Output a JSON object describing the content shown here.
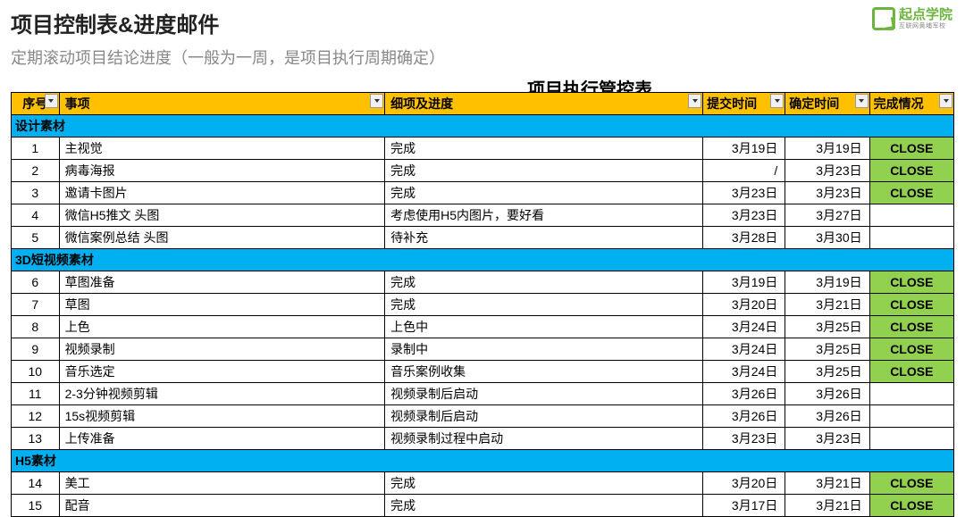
{
  "logo": {
    "main": "起点学院",
    "sub": "互联网黄埔军校"
  },
  "title": "项目控制表&进度邮件",
  "subtitle": "定期滚动项目结论进度（一般为一周，是项目执行周期确定）",
  "table_title": "项目执行管控表",
  "colors": {
    "header_bg": "#ffc000",
    "section_bg": "#00b0f0",
    "close_bg": "#92d050",
    "logo_green": "#6cb33f"
  },
  "columns": [
    "序号",
    "事项",
    "细项及进度",
    "提交时间",
    "确定时间",
    "完成情况"
  ],
  "sections": [
    {
      "label": "设计素材",
      "rows": [
        {
          "num": "1",
          "item": "主视觉",
          "detail": "完成",
          "submit": "3月19日",
          "confirm": "3月19日",
          "status": "CLOSE"
        },
        {
          "num": "2",
          "item": "病毒海报",
          "detail": "完成",
          "submit": "/",
          "confirm": "3月23日",
          "status": "CLOSE"
        },
        {
          "num": "3",
          "item": "邀请卡图片",
          "detail": "完成",
          "submit": "3月23日",
          "confirm": "3月23日",
          "status": "CLOSE"
        },
        {
          "num": "4",
          "item": "微信H5推文 头图",
          "detail": "考虑使用H5内图片，要好看",
          "submit": "3月23日",
          "confirm": "3月27日",
          "status": ""
        },
        {
          "num": "5",
          "item": "微信案例总结 头图",
          "detail": "待补充",
          "submit": "3月28日",
          "confirm": "3月30日",
          "status": ""
        }
      ]
    },
    {
      "label": "3D短视频素材",
      "rows": [
        {
          "num": "6",
          "item": "草图准备",
          "detail": "完成",
          "submit": "3月19日",
          "confirm": "3月19日",
          "status": "CLOSE"
        },
        {
          "num": "7",
          "item": "草图",
          "detail": "完成",
          "submit": "3月20日",
          "confirm": "3月21日",
          "status": "CLOSE"
        },
        {
          "num": "8",
          "item": "上色",
          "detail": "上色中",
          "submit": "3月24日",
          "confirm": "3月25日",
          "status": "CLOSE"
        },
        {
          "num": "9",
          "item": "视频录制",
          "detail": "录制中",
          "submit": "3月24日",
          "confirm": "3月25日",
          "status": "CLOSE"
        },
        {
          "num": "10",
          "item": "音乐选定",
          "detail": "音乐案例收集",
          "submit": "3月24日",
          "confirm": "3月25日",
          "status": "CLOSE"
        },
        {
          "num": "11",
          "item": "2-3分钟视频剪辑",
          "detail": "视频录制后启动",
          "submit": "3月26日",
          "confirm": "3月26日",
          "status": ""
        },
        {
          "num": "12",
          "item": "15s视频剪辑",
          "detail": "视频录制后启动",
          "submit": "3月26日",
          "confirm": "3月26日",
          "status": ""
        },
        {
          "num": "13",
          "item": "上传准备",
          "detail": "视频录制过程中启动",
          "submit": "3月23日",
          "confirm": "3月23日",
          "status": ""
        }
      ]
    },
    {
      "label": "H5素材",
      "rows": [
        {
          "num": "14",
          "item": "美工",
          "detail": "完成",
          "submit": "3月20日",
          "confirm": "3月21日",
          "status": "CLOSE"
        },
        {
          "num": "15",
          "item": "配音",
          "detail": "完成",
          "submit": "3月17日",
          "confirm": "3月21日",
          "status": "CLOSE"
        }
      ]
    }
  ]
}
